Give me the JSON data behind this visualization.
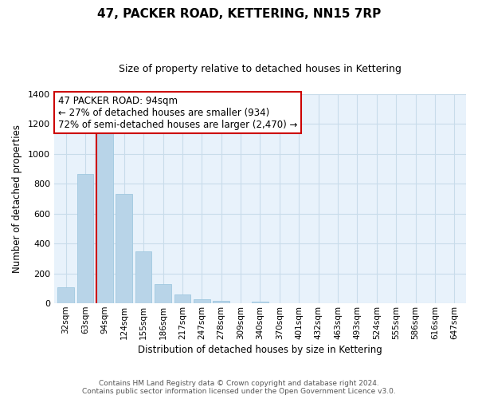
{
  "title": "47, PACKER ROAD, KETTERING, NN15 7RP",
  "subtitle": "Size of property relative to detached houses in Kettering",
  "xlabel": "Distribution of detached houses by size in Kettering",
  "ylabel": "Number of detached properties",
  "categories": [
    "32sqm",
    "63sqm",
    "94sqm",
    "124sqm",
    "155sqm",
    "186sqm",
    "217sqm",
    "247sqm",
    "278sqm",
    "309sqm",
    "340sqm",
    "370sqm",
    "401sqm",
    "432sqm",
    "463sqm",
    "493sqm",
    "524sqm",
    "555sqm",
    "586sqm",
    "616sqm",
    "647sqm"
  ],
  "values": [
    105,
    865,
    1145,
    730,
    345,
    130,
    60,
    30,
    15,
    0,
    10,
    0,
    0,
    0,
    0,
    0,
    0,
    0,
    0,
    0,
    0
  ],
  "bar_color": "#b8d4e8",
  "bar_edge_color": "#a0c8e0",
  "vline_x": 2,
  "vline_color": "#cc0000",
  "annotation_line1": "47 PACKER ROAD: 94sqm",
  "annotation_line2": "← 27% of detached houses are smaller (934)",
  "annotation_line3": "72% of semi-detached houses are larger (2,470) →",
  "annotation_box_color": "#ffffff",
  "annotation_box_edge_color": "#cc0000",
  "ylim": [
    0,
    1400
  ],
  "yticks": [
    0,
    200,
    400,
    600,
    800,
    1000,
    1200,
    1400
  ],
  "grid_color": "#c8dcea",
  "footer_line1": "Contains HM Land Registry data © Crown copyright and database right 2024.",
  "footer_line2": "Contains public sector information licensed under the Open Government Licence v3.0.",
  "background_color": "#ffffff",
  "plot_bg_color": "#e8f2fb",
  "title_fontsize": 11,
  "subtitle_fontsize": 9,
  "xlabel_fontsize": 8.5,
  "ylabel_fontsize": 8.5,
  "tick_fontsize": 8,
  "annotation_fontsize": 8.5,
  "footer_fontsize": 6.5
}
